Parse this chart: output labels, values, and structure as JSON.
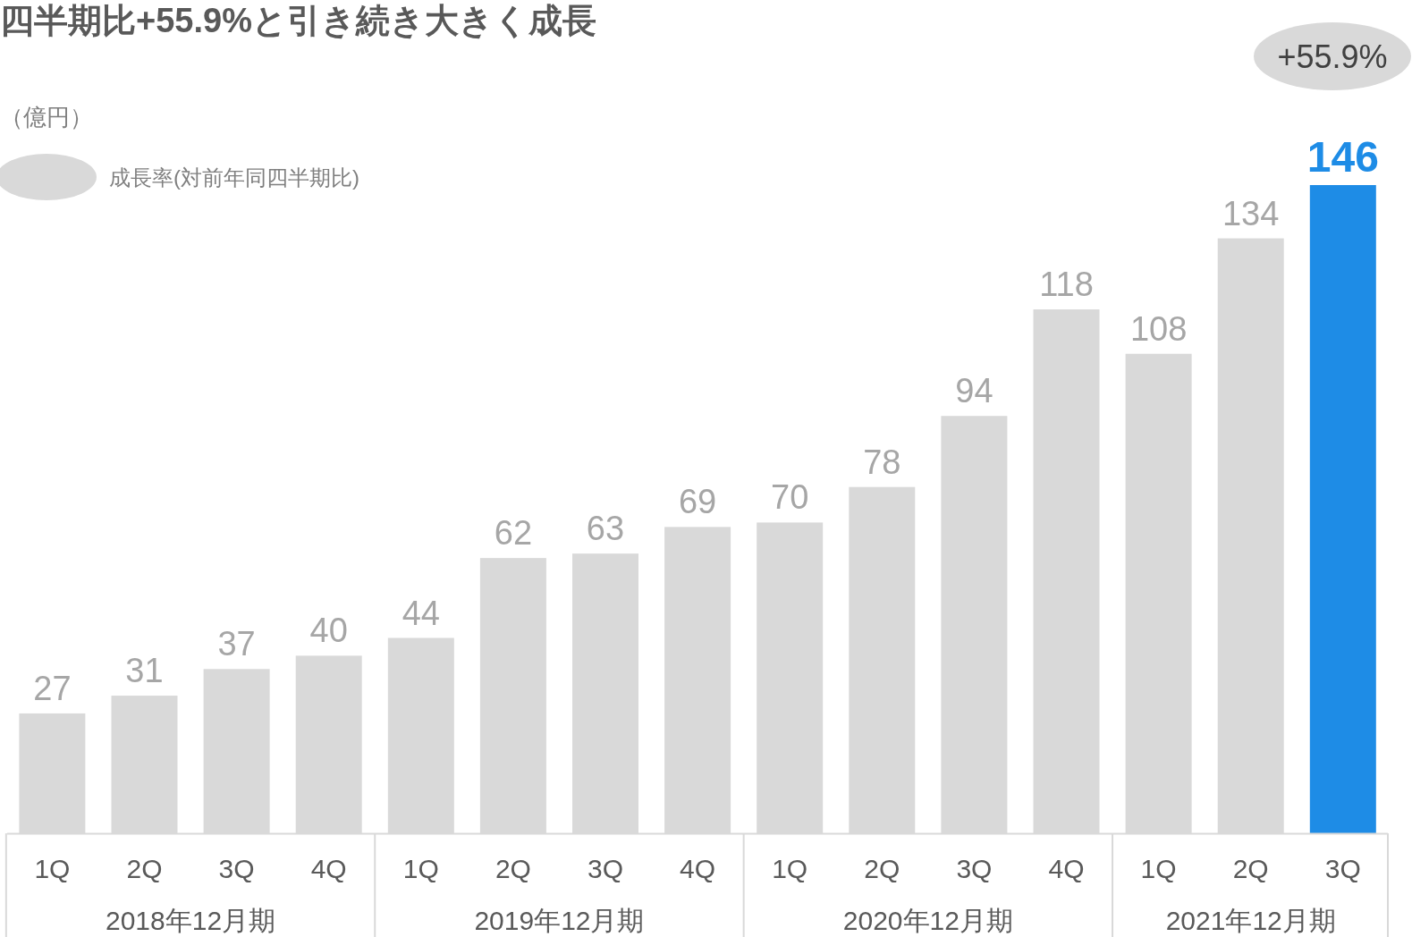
{
  "chart_data": {
    "type": "bar",
    "title": "四半期比+55.9%と引き続き大きく成長",
    "ylabel": "（億円）",
    "categories": [
      "1Q",
      "2Q",
      "3Q",
      "4Q",
      "1Q",
      "2Q",
      "3Q",
      "4Q",
      "1Q",
      "2Q",
      "3Q",
      "4Q",
      "1Q",
      "2Q",
      "3Q"
    ],
    "values": [
      27,
      31,
      37,
      40,
      44,
      62,
      63,
      69,
      70,
      78,
      94,
      118,
      108,
      134,
      146
    ],
    "colors": [
      "#d9d9d9",
      "#d9d9d9",
      "#d9d9d9",
      "#d9d9d9",
      "#d9d9d9",
      "#d9d9d9",
      "#d9d9d9",
      "#d9d9d9",
      "#d9d9d9",
      "#d9d9d9",
      "#d9d9d9",
      "#d9d9d9",
      "#d9d9d9",
      "#d9d9d9",
      "#1e8ce6"
    ],
    "data_labels": true,
    "annotations": [
      "2018年12月期",
      "2019年12月期",
      "2020年12月期",
      "2021年12月期",
      "成長率(対前年同四半期比)",
      "+55.9%"
    ]
  }
}
